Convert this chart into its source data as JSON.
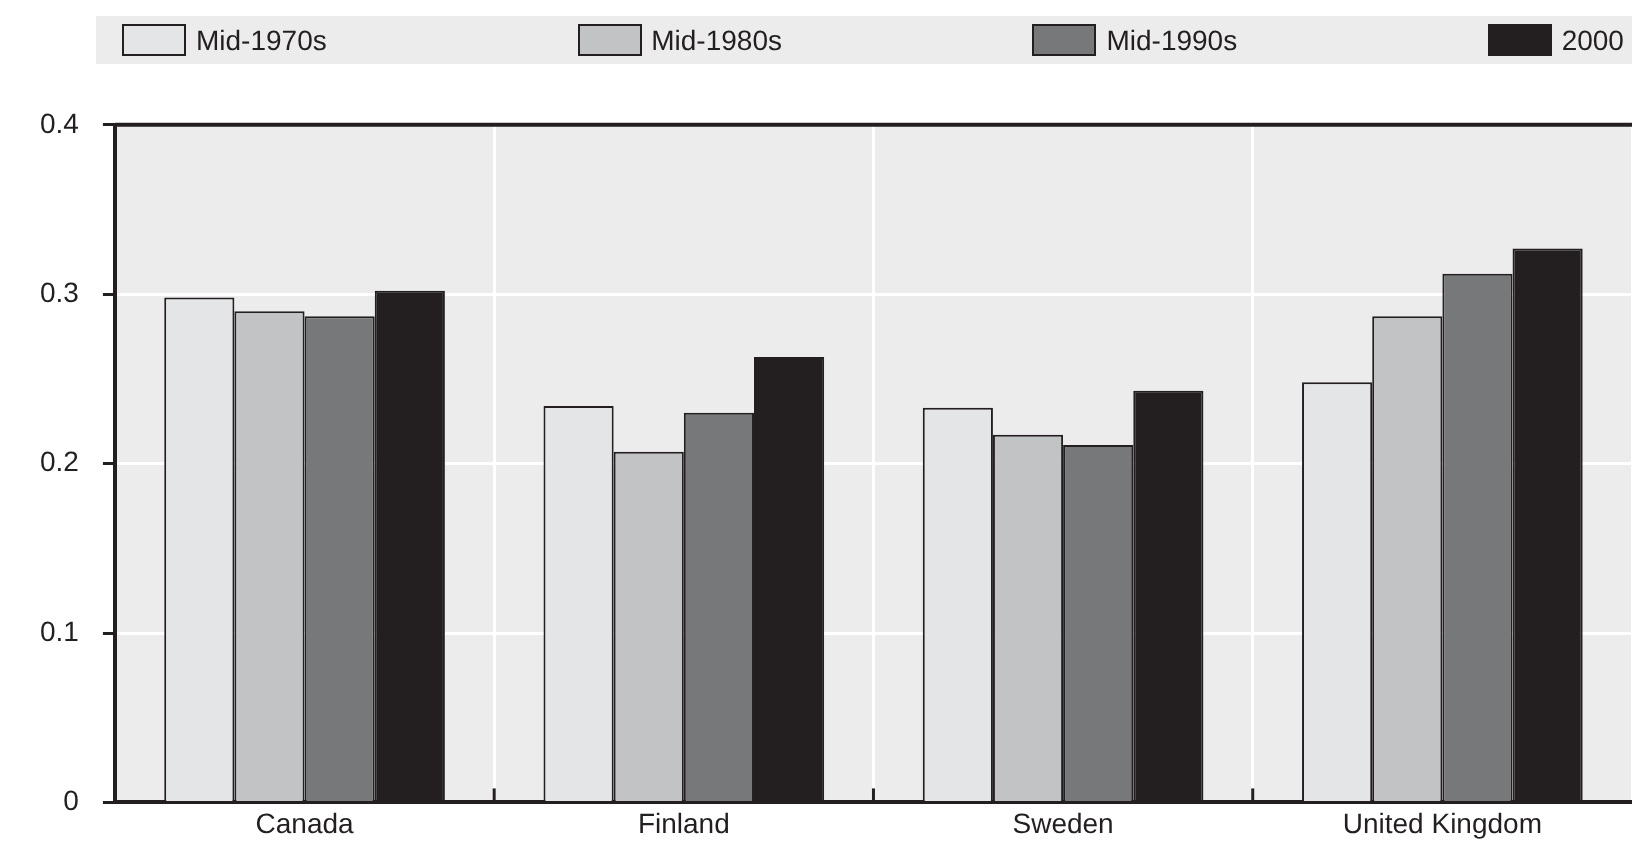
{
  "chart_data": {
    "type": "bar",
    "categories": [
      "Canada",
      "Finland",
      "Sweden",
      "United Kingdom"
    ],
    "series": [
      {
        "name": "Mid-1970s",
        "color": "#e4e5e6",
        "values": [
          0.298,
          0.234,
          0.233,
          0.248
        ]
      },
      {
        "name": "Mid-1980s",
        "color": "#c2c3c5",
        "values": [
          0.29,
          0.207,
          0.217,
          0.287
        ]
      },
      {
        "name": "Mid-1990s",
        "color": "#77787a",
        "values": [
          0.287,
          0.23,
          0.211,
          0.312
        ]
      },
      {
        "name": "2000",
        "color": "#231f20",
        "values": [
          0.302,
          0.263,
          0.243,
          0.327
        ]
      }
    ],
    "ylim": [
      0,
      0.4
    ],
    "yticks": [
      0,
      0.1,
      0.2,
      0.3,
      0.4
    ],
    "grid": true,
    "legend": "top"
  }
}
